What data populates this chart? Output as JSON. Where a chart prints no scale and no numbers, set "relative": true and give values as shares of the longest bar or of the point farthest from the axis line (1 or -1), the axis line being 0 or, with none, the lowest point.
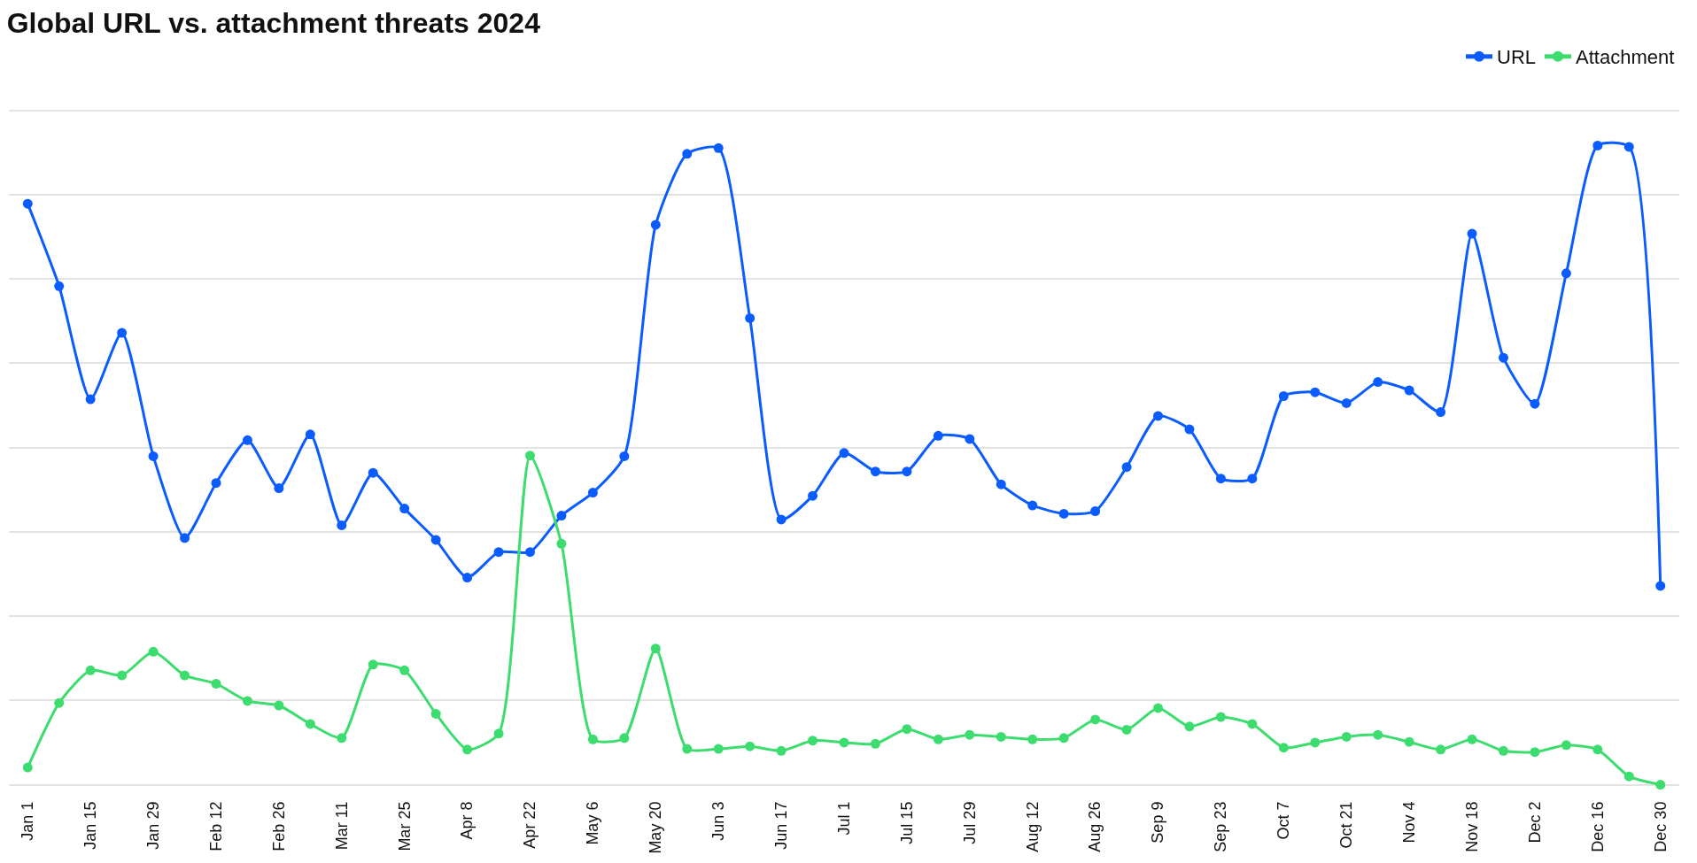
{
  "chart_data": {
    "type": "line",
    "title": "Global URL vs. attachment threats 2024",
    "relative": true,
    "grid": "y",
    "legend": "top right",
    "marker": "circle",
    "line_style": "solid",
    "categories": [
      "Jan 1",
      null,
      "Jan 15",
      null,
      "Jan 29",
      null,
      "Feb 12",
      null,
      "Feb 26",
      null,
      "Mar 11",
      null,
      "Mar 25",
      null,
      "Apr 8",
      null,
      "Apr 22",
      null,
      "May 6",
      null,
      "May 20",
      null,
      "Jun 3",
      null,
      "Jun 17",
      null,
      "Jul 1",
      null,
      "Jul 15",
      null,
      "Jul 29",
      null,
      "Aug 12",
      null,
      "Aug 26",
      null,
      "Sep 9",
      null,
      "Sep 23",
      null,
      "Oct 7",
      null,
      "Oct 21",
      null,
      "Nov 4",
      null,
      "Nov 18",
      null,
      "Dec 2",
      null,
      "Dec 16",
      null,
      "Dec 30"
    ],
    "series": [
      {
        "name": "URL",
        "color": "#0b5cff",
        "values": [
          0.909,
          0.78,
          0.603,
          0.707,
          0.514,
          0.386,
          0.472,
          0.539,
          0.464,
          0.548,
          0.406,
          0.488,
          0.432,
          0.383,
          0.324,
          0.364,
          0.364,
          0.421,
          0.457,
          0.514,
          0.876,
          0.987,
          0.996,
          0.73,
          0.415,
          0.452,
          0.519,
          0.49,
          0.49,
          0.546,
          0.541,
          0.47,
          0.437,
          0.424,
          0.428,
          0.497,
          0.577,
          0.556,
          0.479,
          0.479,
          0.608,
          0.614,
          0.597,
          0.63,
          0.617,
          0.583,
          0.862,
          0.668,
          0.596,
          0.8,
          1.0,
          0.998,
          0.311
        ]
      },
      {
        "name": "Attachment",
        "color": "#3ddc6e",
        "values": [
          0.027,
          0.128,
          0.179,
          0.171,
          0.208,
          0.171,
          0.158,
          0.131,
          0.124,
          0.095,
          0.073,
          0.188,
          0.179,
          0.111,
          0.055,
          0.08,
          0.515,
          0.377,
          0.071,
          0.073,
          0.213,
          0.056,
          0.056,
          0.06,
          0.053,
          0.069,
          0.066,
          0.064,
          0.087,
          0.071,
          0.078,
          0.075,
          0.071,
          0.073,
          0.102,
          0.086,
          0.12,
          0.091,
          0.106,
          0.095,
          0.058,
          0.066,
          0.075,
          0.078,
          0.067,
          0.055,
          0.071,
          0.053,
          0.051,
          0.062,
          0.055,
          0.013,
          0
        ]
      }
    ]
  }
}
